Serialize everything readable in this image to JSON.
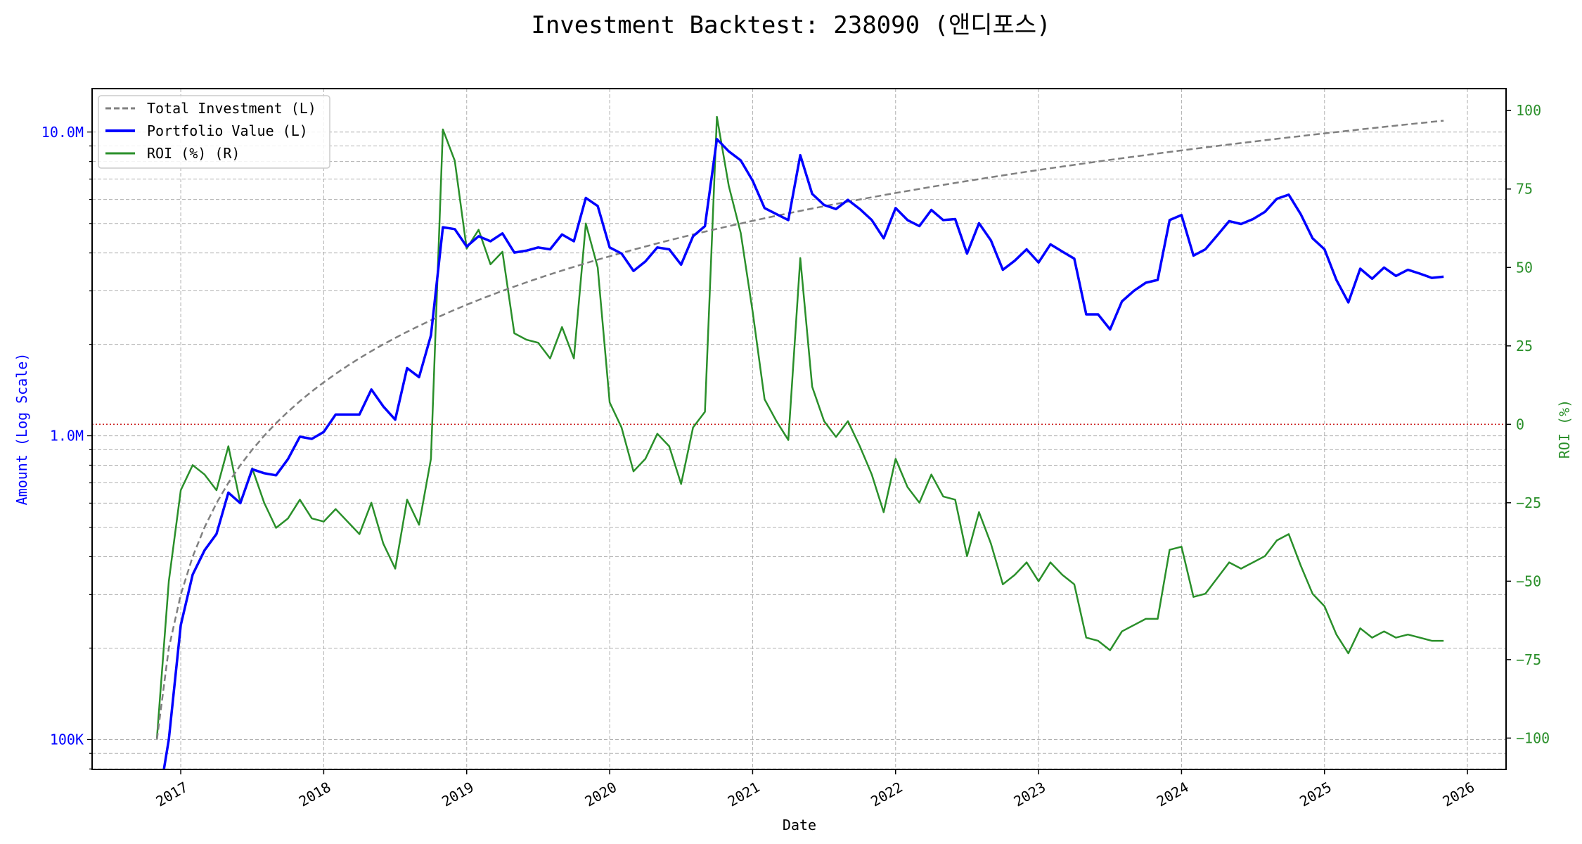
{
  "chart_data": {
    "type": "line",
    "title": "Investment Backtest: 238090 (앤디포스)",
    "xlabel": "Date",
    "ylabel_left": "Amount (Log Scale)",
    "ylabel_right": "ROI (%)",
    "x_start": "2016-11",
    "x_frequency": "monthly",
    "x_ticks": [
      "2017",
      "2018",
      "2019",
      "2020",
      "2021",
      "2022",
      "2023",
      "2024",
      "2025",
      "2026"
    ],
    "xlim": [
      2016.38,
      2026.27
    ],
    "y_left": {
      "scale": "log",
      "unit": "M",
      "ylim": [
        0.0797,
        13.9
      ],
      "ticks": [
        0.1,
        1,
        10
      ],
      "tick_labels": [
        "100K",
        "1.0M",
        "10.0M"
      ]
    },
    "y_right": {
      "ylim": [
        -110,
        107
      ],
      "ticks": [
        -100,
        -75,
        -50,
        -25,
        0,
        25,
        50,
        75,
        100
      ],
      "tick_labels": [
        "−100",
        "−75",
        "−50",
        "−25",
        "0",
        "25",
        "50",
        "75",
        "100"
      ]
    },
    "grid": true,
    "legend": {
      "placement": "top-left",
      "entries": [
        "Total Investment (L)",
        "Portfolio Value (L)",
        "ROI (%) (R)"
      ]
    },
    "reference_line": {
      "axis": "right",
      "value": 0,
      "color": "#cc2222",
      "style": "dotted"
    },
    "series": [
      {
        "name": "Total Investment (L)",
        "axis": "left",
        "color": "#808080",
        "style": "dashed",
        "values": [
          0.1,
          0.2,
          0.3,
          0.4,
          0.5,
          0.6,
          0.7,
          0.8,
          0.9,
          1.0,
          1.1,
          1.2,
          1.3,
          1.4,
          1.5,
          1.6,
          1.7,
          1.8,
          1.9,
          2.0,
          2.1,
          2.2,
          2.3,
          2.4,
          2.5,
          2.6,
          2.7,
          2.8,
          2.9,
          3.0,
          3.1,
          3.2,
          3.3,
          3.4,
          3.5,
          3.6,
          3.7,
          3.8,
          3.9,
          4.0,
          4.1,
          4.2,
          4.3,
          4.4,
          4.5,
          4.6,
          4.7,
          4.8,
          4.9,
          5.0,
          5.1,
          5.2,
          5.3,
          5.4,
          5.5,
          5.6,
          5.7,
          5.8,
          5.9,
          6.0,
          6.1,
          6.2,
          6.3,
          6.4,
          6.5,
          6.6,
          6.7,
          6.8,
          6.9,
          7.0,
          7.1,
          7.2,
          7.3,
          7.4,
          7.5,
          7.6,
          7.7,
          7.8,
          7.9,
          8.0,
          8.1,
          8.2,
          8.3,
          8.4,
          8.5,
          8.6,
          8.7,
          8.8,
          8.9,
          9.0,
          9.1,
          9.2,
          9.3,
          9.4,
          9.5,
          9.6,
          9.7,
          9.8,
          9.9,
          10.0,
          10.1,
          10.2,
          10.3,
          10.4,
          10.5,
          10.6,
          10.7,
          10.8,
          10.9
        ]
      },
      {
        "name": "Portfolio Value (L)",
        "axis": "left",
        "color": "#0000ff",
        "style": "solid",
        "values": [
          0,
          0.1,
          0.238,
          0.349,
          0.42,
          0.475,
          0.65,
          0.6,
          0.776,
          0.753,
          0.741,
          0.838,
          0.993,
          0.977,
          1.03,
          1.175,
          1.175,
          1.175,
          1.42,
          1.25,
          1.13,
          1.67,
          1.56,
          2.14,
          4.86,
          4.79,
          4.2,
          4.54,
          4.37,
          4.64,
          4.01,
          4.07,
          4.17,
          4.11,
          4.6,
          4.37,
          6.07,
          5.71,
          4.17,
          3.98,
          3.49,
          3.75,
          4.17,
          4.11,
          3.66,
          4.54,
          4.9,
          9.48,
          8.64,
          8.07,
          6.92,
          5.62,
          5.37,
          5.13,
          8.39,
          6.26,
          5.75,
          5.58,
          5.98,
          5.58,
          5.13,
          4.47,
          5.62,
          5.13,
          4.9,
          5.54,
          5.13,
          5.17,
          3.98,
          5.01,
          4.4,
          3.52,
          3.77,
          4.11,
          3.72,
          4.27,
          4.04,
          3.83,
          2.51,
          2.51,
          2.24,
          2.77,
          3.0,
          3.19,
          3.26,
          5.13,
          5.33,
          3.92,
          4.11,
          4.57,
          5.09,
          4.98,
          5.17,
          5.46,
          6.03,
          6.22,
          5.37,
          4.47,
          4.11,
          3.26,
          2.75,
          3.55,
          3.29,
          3.58,
          3.36,
          3.52,
          3.42,
          3.31,
          3.34
        ]
      },
      {
        "name": "ROI (%) (R)",
        "axis": "right",
        "color": "#2a8f2a",
        "style": "solid",
        "values": [
          -100,
          -50,
          -21,
          -13,
          -16,
          -21,
          -7,
          -25,
          -14,
          -25,
          -33,
          -30,
          -24,
          -30,
          -31,
          -27,
          -31,
          -35,
          -25,
          -38,
          -46,
          -24,
          -32,
          -11,
          94,
          84,
          56,
          62,
          51,
          55,
          29,
          27,
          26,
          21,
          31,
          21,
          64,
          50,
          7,
          -1,
          -15,
          -11,
          -3,
          -7,
          -19,
          -1,
          4,
          98,
          76,
          61,
          36,
          8,
          1,
          -5,
          53,
          12,
          1,
          -4,
          1,
          -7,
          -16,
          -28,
          -11,
          -20,
          -25,
          -16,
          -23,
          -24,
          -42,
          -28,
          -38,
          -51,
          -48,
          -44,
          -50,
          -44,
          -48,
          -51,
          -68,
          -69,
          -72,
          -66,
          -64,
          -62,
          -62,
          -40,
          -39,
          -55,
          -54,
          -49,
          -44,
          -46,
          -44,
          -42,
          -37,
          -35,
          -45,
          -54,
          -58,
          -67,
          -73,
          -65,
          -68,
          -66,
          -68,
          -67,
          -68,
          -69,
          -69
        ]
      }
    ]
  }
}
